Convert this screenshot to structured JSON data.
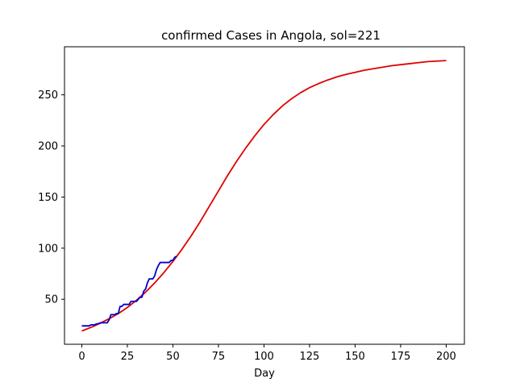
{
  "chart_data": {
    "type": "line",
    "title": "confirmed Cases in Angola, sol=221",
    "xlabel": "Day",
    "ylabel": "",
    "xlim": [
      -9.5,
      210
    ],
    "ylim": [
      6,
      297
    ],
    "xticks": [
      "0",
      "25",
      "50",
      "75",
      "100",
      "125",
      "150",
      "175",
      "200"
    ],
    "yticks": [
      "50",
      "100",
      "150",
      "200",
      "250"
    ],
    "grid": false,
    "series": [
      {
        "color": "#e00000",
        "x": [
          0,
          5,
          10,
          15,
          20,
          25,
          30,
          35,
          40,
          45,
          50,
          55,
          60,
          65,
          70,
          75,
          80,
          85,
          90,
          95,
          100,
          105,
          110,
          115,
          120,
          125,
          130,
          135,
          140,
          145,
          150,
          155,
          160,
          165,
          170,
          175,
          180,
          185,
          190,
          195,
          200
        ],
        "y": [
          19,
          22.5,
          26.5,
          31,
          36,
          42,
          49,
          57,
          66,
          76,
          87,
          99,
          112,
          126,
          141,
          156,
          171,
          185,
          198,
          210,
          221,
          230.5,
          239,
          246,
          252,
          257,
          261,
          264.5,
          267.5,
          270,
          272,
          274,
          275.5,
          277,
          278.5,
          279.5,
          280.5,
          281.5,
          282.5,
          283,
          283.5
        ]
      },
      {
        "color": "#0000cc",
        "x": [
          0,
          1,
          2,
          3,
          4,
          5,
          6,
          7,
          8,
          9,
          10,
          11,
          12,
          13,
          14,
          15,
          16,
          17,
          18,
          19,
          20,
          21,
          22,
          23,
          24,
          25,
          26,
          27,
          28,
          29,
          30,
          31,
          32,
          33,
          34,
          35,
          36,
          37,
          38,
          39,
          40,
          41,
          42,
          43,
          44,
          45,
          46,
          47,
          48,
          49,
          50,
          51,
          52
        ],
        "y": [
          24,
          24,
          24,
          24,
          24,
          25,
          25,
          25,
          26,
          26,
          27,
          27,
          27,
          27,
          27,
          30,
          35,
          35,
          35,
          36,
          36,
          43,
          43,
          45,
          45,
          45,
          45,
          48,
          48,
          48,
          48,
          50,
          52,
          52,
          58,
          60,
          66,
          70,
          70,
          70,
          73,
          79,
          83,
          86,
          86,
          86,
          86,
          86,
          86,
          88,
          88,
          91,
          92
        ]
      }
    ]
  }
}
